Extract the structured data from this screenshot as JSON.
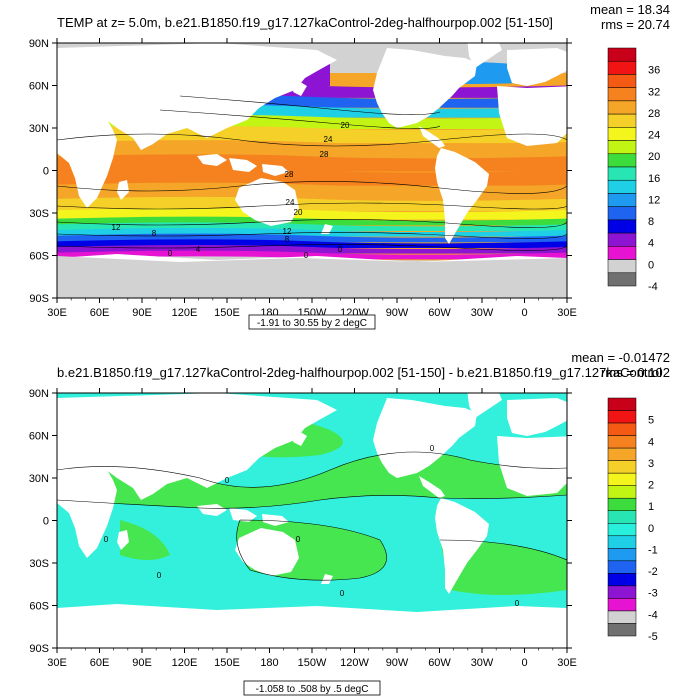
{
  "chart_data": [
    {
      "type": "heatmap",
      "title": "TEMP at z=   5.0m, b.e21.B1850.f19_g17.127kaControl-2deg-halfhourpop.002 [51-150]",
      "stats": {
        "mean": "mean = 18.34",
        "rms": "rms = 20.74"
      },
      "x_ticks": [
        "30E",
        "60E",
        "90E",
        "120E",
        "150E",
        "180",
        "150W",
        "120W",
        "90W",
        "60W",
        "30W",
        "0",
        "30E"
      ],
      "y_ticks": [
        "90N",
        "60N",
        "30N",
        "0",
        "30S",
        "60S",
        "90S"
      ],
      "xlim": [
        30,
        390
      ],
      "ylim": [
        -90,
        90
      ],
      "colorbar_labels": [
        "36",
        "32",
        "28",
        "24",
        "20",
        "16",
        "12",
        "8",
        "4",
        "0",
        "-4"
      ],
      "contour_labels": [
        "20",
        "24",
        "28",
        "28",
        "24",
        "20",
        "16",
        "12",
        "8",
        "12",
        "8",
        "0",
        "0",
        "0",
        "4"
      ],
      "info_box": "-1.91 to 30.55 by 2 degC",
      "bands": [
        {
          "lat": 60,
          "value": 4
        },
        {
          "lat": 52,
          "value": 8
        },
        {
          "lat": 45,
          "value": 14
        },
        {
          "lat": 38,
          "value": 20
        },
        {
          "lat": 30,
          "value": 24
        },
        {
          "lat": 20,
          "value": 26
        },
        {
          "lat": 10,
          "value": 28
        },
        {
          "lat": 0,
          "value": 28
        },
        {
          "lat": -10,
          "value": 27
        },
        {
          "lat": -20,
          "value": 25
        },
        {
          "lat": -28,
          "value": 22
        },
        {
          "lat": -34,
          "value": 18
        },
        {
          "lat": -38,
          "value": 16
        },
        {
          "lat": -42,
          "value": 12
        },
        {
          "lat": -46,
          "value": 8
        },
        {
          "lat": -50,
          "value": 6
        },
        {
          "lat": -54,
          "value": 4
        },
        {
          "lat": -58,
          "value": 2
        },
        {
          "lat": -62,
          "value": 0
        },
        {
          "lat": -66,
          "value": -1
        }
      ]
    },
    {
      "type": "heatmap",
      "title": "b.e21.B1850.f19_g17.127kaControl-2deg-halfhourpop.002 [51-150] - b.e21.B1850.f19_g17.127kaControl",
      "stats": {
        "mean": "mean = -0.01472",
        "rms": "rms = 0.102"
      },
      "x_ticks": [
        "30E",
        "60E",
        "90E",
        "120E",
        "150E",
        "180",
        "150W",
        "120W",
        "90W",
        "60W",
        "30W",
        "0",
        "30E"
      ],
      "y_ticks": [
        "90N",
        "60N",
        "30N",
        "0",
        "30S",
        "60S",
        "90S"
      ],
      "xlim": [
        30,
        390
      ],
      "ylim": [
        -90,
        90
      ],
      "colorbar_labels": [
        "5",
        "4",
        "3",
        "2",
        "1",
        "0",
        "-1",
        "-2",
        "-3",
        "-4",
        "-5"
      ],
      "contour_labels": [
        "0",
        "0",
        "0",
        "0",
        "0",
        "0",
        "0"
      ],
      "info_box": "-1.058 to .508 by .5 degC"
    }
  ],
  "colors": {
    "cb1": [
      "#c8001a",
      "#f01414",
      "#f55a14",
      "#f5821e",
      "#f5a528",
      "#f5d028",
      "#f5f51e",
      "#c3f514",
      "#3cdc3c",
      "#28e6b4",
      "#1ecfe6",
      "#1e9bf0",
      "#1e64f0",
      "#0000e6",
      "#8c14d2",
      "#e614d2",
      "#d2d2d2",
      "#707070"
    ],
    "cb2": [
      "#c8001a",
      "#f01414",
      "#f55a14",
      "#f5821e",
      "#f5a528",
      "#f5d028",
      "#f5f51e",
      "#c3f514",
      "#3cdc3c",
      "#28e6b4",
      "#28f0dc",
      "#1ecfe6",
      "#1e9bf0",
      "#1e64f0",
      "#0000e6",
      "#8c14d2",
      "#e614d2",
      "#d2d2d2",
      "#707070"
    ],
    "land": "#ffffff",
    "ice": "#d2d2d2",
    "diff_warm": "#46e650",
    "diff_cool": "#32f0dc"
  }
}
